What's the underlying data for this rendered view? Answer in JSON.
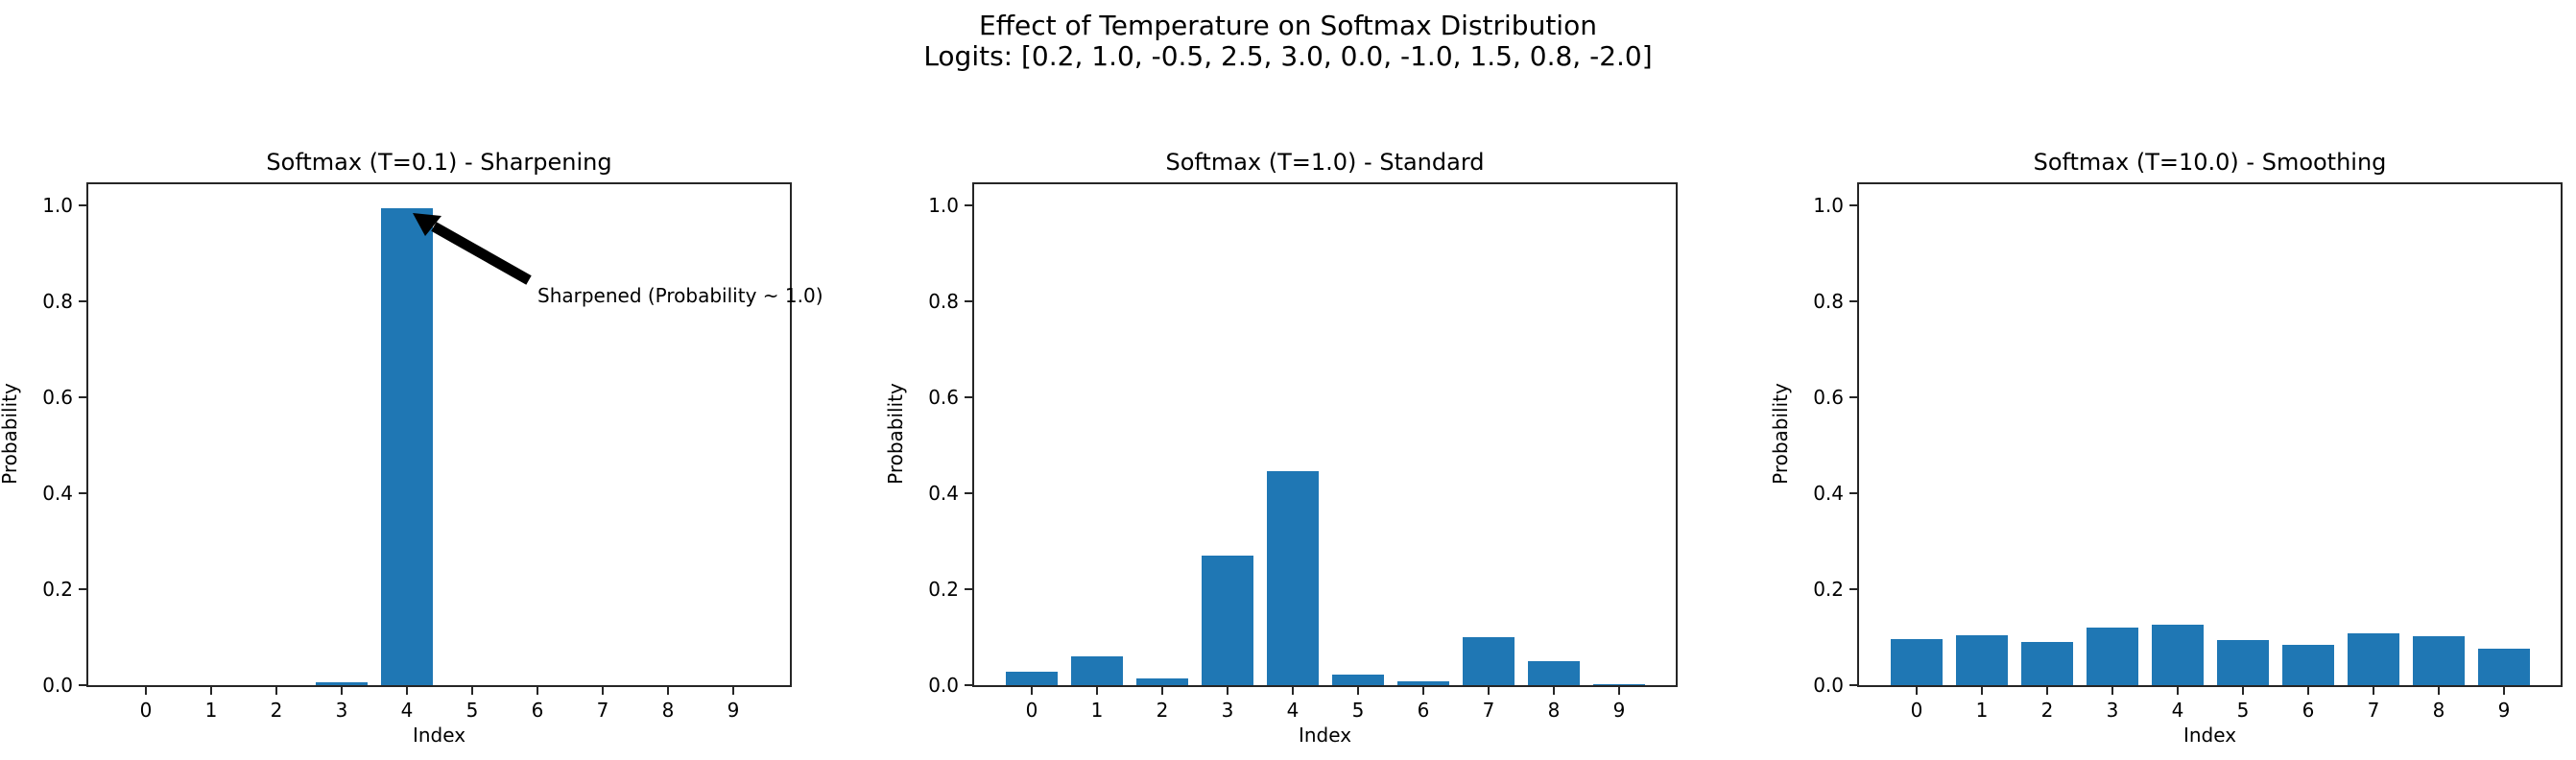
{
  "figure": {
    "suptitle_line1": "Effect of Temperature on Softmax Distribution",
    "suptitle_line2": "Logits: [0.2, 1.0, -0.5, 2.5, 3.0, 0.0, -1.0, 1.5, 0.8, -2.0]",
    "bar_color": "#1f77b4"
  },
  "panels": [
    {
      "title": "Softmax (T=0.1) - Sharpening",
      "xlabel": "Index",
      "ylabel": "Probability",
      "annotation": "Sharpened (Probability ~ 1.0)"
    },
    {
      "title": "Softmax (T=1.0) - Standard",
      "xlabel": "Index",
      "ylabel": "Probability"
    },
    {
      "title": "Softmax (T=10.0) - Smoothing",
      "xlabel": "Index",
      "ylabel": "Probability"
    }
  ],
  "yticks": [
    "0.0",
    "0.2",
    "0.4",
    "0.6",
    "0.8",
    "1.0"
  ],
  "xticks": [
    "0",
    "1",
    "2",
    "3",
    "4",
    "5",
    "6",
    "7",
    "8",
    "9"
  ],
  "chart_data": [
    {
      "type": "bar",
      "title": "Softmax (T=0.1) - Sharpening",
      "xlabel": "Index",
      "ylabel": "Probability",
      "categories": [
        0,
        1,
        2,
        3,
        4,
        5,
        6,
        7,
        8,
        9
      ],
      "values": [
        0.0,
        0.0,
        0.0,
        0.0067,
        0.9933,
        0.0,
        0.0,
        0.0,
        0.0,
        0.0
      ],
      "ylim": [
        0,
        1.05
      ],
      "annotations": [
        {
          "text": "Sharpened (Probability ~ 1.0)",
          "xy": [
            4,
            0.9933
          ],
          "xytext": [
            6,
            0.8
          ],
          "arrow": true
        }
      ],
      "grid": false
    },
    {
      "type": "bar",
      "title": "Softmax (T=1.0) - Standard",
      "xlabel": "Index",
      "ylabel": "Probability",
      "categories": [
        0,
        1,
        2,
        3,
        4,
        5,
        6,
        7,
        8,
        9
      ],
      "values": [
        0.0271,
        0.0604,
        0.0135,
        0.2706,
        0.4461,
        0.0222,
        0.0082,
        0.0995,
        0.0494,
        0.003
      ],
      "ylim": [
        0,
        1.05
      ],
      "grid": false
    },
    {
      "type": "bar",
      "title": "Softmax (T=10.0) - Smoothing",
      "xlabel": "Index",
      "ylabel": "Probability",
      "categories": [
        0,
        1,
        2,
        3,
        4,
        5,
        6,
        7,
        8,
        9
      ],
      "values": [
        0.0955,
        0.1035,
        0.0891,
        0.1202,
        0.1264,
        0.0936,
        0.0847,
        0.1088,
        0.1014,
        0.0767
      ],
      "ylim": [
        0,
        1.05
      ],
      "grid": false
    }
  ]
}
